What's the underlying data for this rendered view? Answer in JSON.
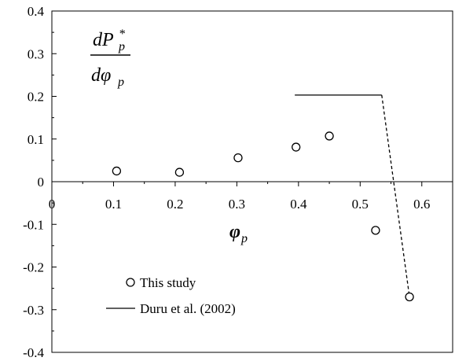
{
  "chart_data": {
    "type": "scatter",
    "title": "",
    "xlabel": "φ",
    "xlabel_sub": "p",
    "ylabel_numerator": "dP",
    "ylabel_numerator_sup": "*",
    "ylabel_numerator_sub": "p",
    "ylabel_denominator": "dφ",
    "ylabel_denominator_sub": "p",
    "xlim": [
      0,
      0.65
    ],
    "ylim": [
      -0.4,
      0.4
    ],
    "x_ticks": [
      "0",
      "0.1",
      "0.2",
      "0.3",
      "0.4",
      "0.5",
      "0.6"
    ],
    "y_ticks": [
      "0.4",
      "0.3",
      "0.2",
      "0.1",
      "0",
      "-0.1",
      "-0.2",
      "-0.3",
      "-0.4"
    ],
    "grid": false,
    "legend_position": "bottom-left",
    "series": [
      {
        "name": "This study",
        "marker": "open-circle",
        "points": [
          {
            "x": 0.105,
            "y": 0.025
          },
          {
            "x": 0.207,
            "y": 0.022
          },
          {
            "x": 0.302,
            "y": 0.056
          },
          {
            "x": 0.396,
            "y": 0.081
          },
          {
            "x": 0.45,
            "y": 0.107
          },
          {
            "x": 0.525,
            "y": -0.114
          },
          {
            "x": 0.58,
            "y": -0.27
          }
        ]
      },
      {
        "name": "Duru et al. (2002)",
        "style": "solid-line",
        "points": [
          {
            "x": 0.394,
            "y": 0.203
          },
          {
            "x": 0.535,
            "y": 0.203
          }
        ]
      },
      {
        "style": "dashed-line",
        "points": [
          {
            "x": 0.535,
            "y": 0.203
          },
          {
            "x": 0.58,
            "y": -0.27
          }
        ]
      }
    ]
  }
}
